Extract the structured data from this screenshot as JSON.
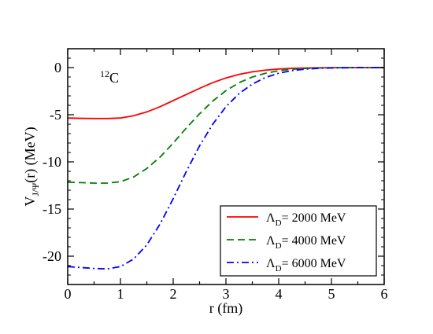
{
  "chart_data": {
    "type": "line",
    "xlabel": "r  (fm)",
    "ylabel_main": "V",
    "ylabel_sub": "J/Ψ",
    "ylabel_tail": "(r)  (MeV)",
    "annotation": {
      "sup": "12",
      "main": "C"
    },
    "xlim": [
      0,
      6
    ],
    "ylim": [
      -23,
      2
    ],
    "x_ticks": [
      0,
      1,
      2,
      3,
      4,
      5,
      6
    ],
    "y_ticks": [
      0,
      -5,
      -10,
      -15,
      -20
    ],
    "grid": false,
    "legend_placement": "bottom-right",
    "series": [
      {
        "name_prefix": "Λ",
        "name_sub": "D",
        "name_suffix": "= 2000 MeV",
        "color": "#ff0000",
        "dash": "solid",
        "x": [
          0,
          0.25,
          0.5,
          0.75,
          1.0,
          1.25,
          1.5,
          1.75,
          2.0,
          2.25,
          2.5,
          2.75,
          3.0,
          3.25,
          3.5,
          3.75,
          4.0,
          4.25,
          4.5,
          4.75,
          5.0,
          5.5,
          6.0
        ],
        "y": [
          -5.35,
          -5.38,
          -5.4,
          -5.4,
          -5.35,
          -5.1,
          -4.7,
          -4.15,
          -3.5,
          -2.85,
          -2.2,
          -1.6,
          -1.1,
          -0.72,
          -0.45,
          -0.27,
          -0.15,
          -0.08,
          -0.04,
          -0.02,
          -0.01,
          0,
          0
        ]
      },
      {
        "name_prefix": "Λ",
        "name_sub": "D",
        "name_suffix": "= 4000 MeV",
        "color": "#008000",
        "dash": "dashed",
        "x": [
          0,
          0.25,
          0.5,
          0.75,
          1.0,
          1.25,
          1.5,
          1.75,
          2.0,
          2.25,
          2.5,
          2.75,
          3.0,
          3.25,
          3.5,
          3.75,
          4.0,
          4.25,
          4.5,
          4.75,
          5.0,
          5.5,
          6.0
        ],
        "y": [
          -12.15,
          -12.2,
          -12.25,
          -12.25,
          -12.1,
          -11.6,
          -10.7,
          -9.5,
          -8.0,
          -6.4,
          -4.9,
          -3.55,
          -2.45,
          -1.6,
          -1.0,
          -0.6,
          -0.33,
          -0.18,
          -0.09,
          -0.04,
          -0.02,
          0,
          0
        ]
      },
      {
        "name_prefix": "Λ",
        "name_sub": "D",
        "name_suffix": "= 6000 MeV",
        "color": "#0000ff",
        "dash": "dashdot",
        "x": [
          0,
          0.25,
          0.5,
          0.75,
          1.0,
          1.25,
          1.5,
          1.75,
          2.0,
          2.25,
          2.5,
          2.75,
          3.0,
          3.25,
          3.5,
          3.75,
          4.0,
          4.25,
          4.5,
          4.75,
          5.0,
          5.5,
          6.0
        ],
        "y": [
          -21.1,
          -21.2,
          -21.3,
          -21.35,
          -21.1,
          -20.3,
          -18.8,
          -16.6,
          -13.9,
          -11.0,
          -8.3,
          -6.0,
          -4.15,
          -2.75,
          -1.75,
          -1.05,
          -0.6,
          -0.32,
          -0.17,
          -0.08,
          -0.04,
          0,
          0
        ]
      }
    ]
  }
}
